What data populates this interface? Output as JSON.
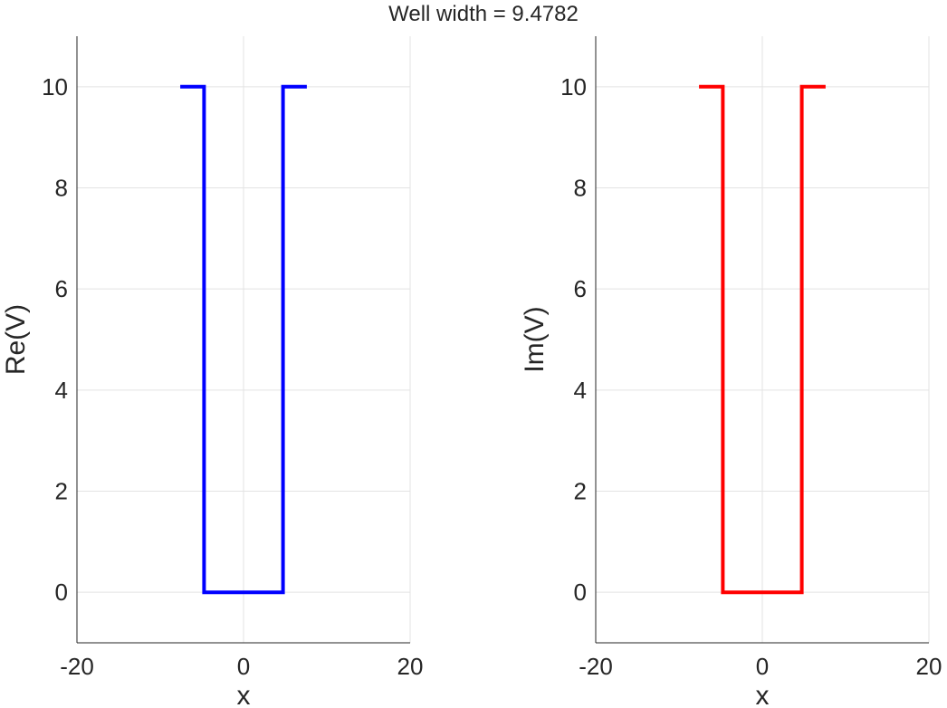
{
  "figure": {
    "suptitle": "Well width = 9.4782"
  },
  "chart_data": [
    {
      "type": "line",
      "title": "",
      "xlabel": "x",
      "ylabel": "Re(V)",
      "xlim": [
        -20,
        20
      ],
      "ylim": [
        -1,
        11
      ],
      "xticks": [
        -20,
        0,
        20
      ],
      "yticks": [
        0,
        2,
        4,
        6,
        8,
        10
      ],
      "grid": true,
      "color": "#0000ff",
      "series": [
        {
          "x": [
            -7.6,
            -4.74,
            -4.74,
            4.74,
            4.74,
            7.6
          ],
          "y": [
            10,
            10,
            0,
            0,
            10,
            10
          ]
        }
      ]
    },
    {
      "type": "line",
      "title": "",
      "xlabel": "x",
      "ylabel": "Im(V)",
      "xlim": [
        -20,
        20
      ],
      "ylim": [
        -1,
        11
      ],
      "xticks": [
        -20,
        0,
        20
      ],
      "yticks": [
        0,
        2,
        4,
        6,
        8,
        10
      ],
      "grid": true,
      "color": "#ff0000",
      "series": [
        {
          "x": [
            -7.6,
            -4.74,
            -4.74,
            4.74,
            4.74,
            7.6
          ],
          "y": [
            10,
            10,
            0,
            0,
            10,
            10
          ]
        }
      ]
    }
  ]
}
